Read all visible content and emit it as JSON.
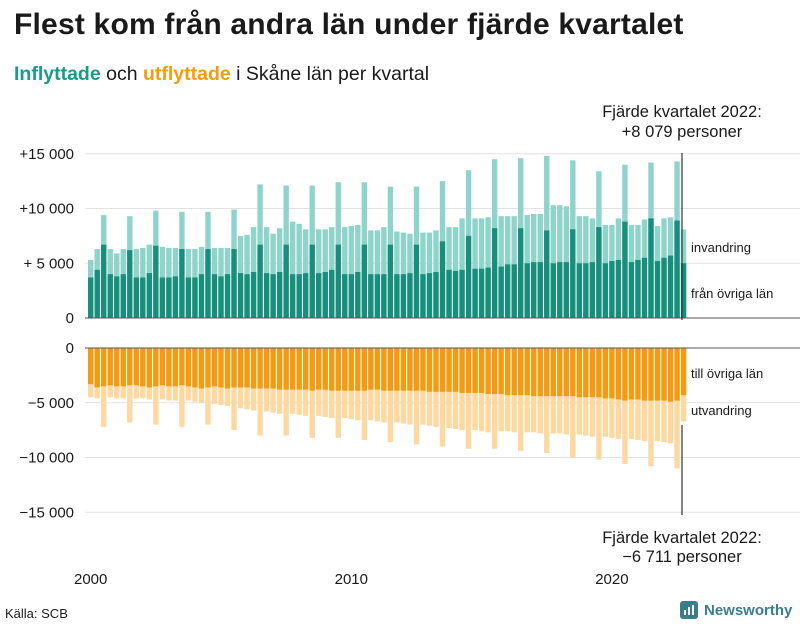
{
  "title": "Flest kom från andra län under fjärde kvartalet",
  "subtitle": {
    "in_word": "Inflyttade",
    "and_word": "och",
    "out_word": "utflyttade",
    "rest": "i Skåne län per kvartal"
  },
  "source": "Källa: SCB",
  "brand": "Newsworthy",
  "colors": {
    "in_total": "#8fd4cb",
    "in_county": "#178f7d",
    "out_total": "#fcd9a0",
    "out_county": "#f39c12",
    "text": "#1a1a1a"
  },
  "chart_data": {
    "type": "bar",
    "title": "Flest kom från andra län under fjärde kvartalet",
    "subtitle": "Inflyttade och utflyttade i Skåne län per kvartal",
    "x": {
      "start": 2000,
      "end": 2022,
      "frequency": "quarterly",
      "tick_labels": [
        "2000",
        "2010",
        "2020"
      ]
    },
    "y": {
      "ylim": [
        -15000,
        15000
      ],
      "tick_values": [
        15000,
        10000,
        5000,
        0,
        -5000,
        -10000,
        -15000
      ],
      "tick_labels": [
        "+15 000",
        "+10 000",
        "+ 5 000",
        "0",
        "−5 000",
        "−10 000",
        "−15 000"
      ]
    },
    "series_labels": {
      "in_total": "invandring",
      "in_county": "från övriga län",
      "out_county": "till övriga län",
      "out_total": "utvandring"
    },
    "annotations": {
      "top_line1": "Fjärde kvartalet 2022:",
      "top_line2": "+8 079 personer",
      "bottom_line1": "Fjärde kvartalet 2022:",
      "bottom_line2": "−6 711 personer"
    },
    "in_total": [
      5300,
      6300,
      9400,
      6300,
      5900,
      6300,
      9300,
      6300,
      6400,
      6700,
      9800,
      6500,
      6400,
      6400,
      9700,
      6300,
      6300,
      6500,
      9700,
      6400,
      6400,
      6400,
      9900,
      7500,
      7600,
      8300,
      12200,
      8300,
      7700,
      8200,
      12100,
      8800,
      8600,
      8100,
      12100,
      8100,
      8100,
      8300,
      12400,
      8300,
      8400,
      8500,
      12400,
      8000,
      8000,
      8300,
      12000,
      7900,
      7800,
      7700,
      12000,
      7800,
      7800,
      8000,
      12500,
      8300,
      8300,
      9100,
      13500,
      9100,
      9100,
      9200,
      14500,
      9300,
      9300,
      9300,
      14600,
      9400,
      9500,
      9500,
      14800,
      10300,
      10300,
      10200,
      14400,
      9300,
      9300,
      9100,
      13400,
      8500,
      8500,
      9100,
      14000,
      8500,
      8500,
      9000,
      14200,
      8400,
      9100,
      9200,
      14300,
      8079
    ],
    "in_county": [
      3700,
      4400,
      6700,
      4000,
      3800,
      4000,
      6200,
      3700,
      3700,
      4100,
      6600,
      3700,
      3700,
      3800,
      6300,
      3700,
      3700,
      4000,
      6300,
      4000,
      3800,
      4000,
      6300,
      4100,
      4000,
      4200,
      6700,
      4100,
      4000,
      4200,
      6700,
      4000,
      4000,
      4100,
      6700,
      4100,
      4200,
      4400,
      6700,
      4000,
      4000,
      4200,
      6700,
      4000,
      4000,
      4000,
      6700,
      4000,
      4000,
      4100,
      6700,
      4000,
      4100,
      4200,
      7000,
      4400,
      4300,
      4400,
      7500,
      4500,
      4500,
      4600,
      8200,
      4700,
      4900,
      4900,
      8200,
      5000,
      5100,
      5100,
      8000,
      5000,
      5100,
      5100,
      8100,
      5000,
      5000,
      5100,
      8300,
      5000,
      5200,
      5300,
      8800,
      5100,
      5300,
      5500,
      9100,
      5200,
      5500,
      5700,
      8900,
      5000
    ],
    "out_county": [
      3300,
      3600,
      3500,
      3400,
      3500,
      3500,
      3400,
      3400,
      3500,
      3600,
      3500,
      3400,
      3500,
      3500,
      3400,
      3500,
      3600,
      3700,
      3600,
      3500,
      3600,
      3700,
      3600,
      3600,
      3600,
      3700,
      3700,
      3700,
      3700,
      3800,
      3800,
      3800,
      3800,
      3800,
      3900,
      3800,
      3800,
      3900,
      3900,
      3900,
      3900,
      3900,
      3900,
      3800,
      3800,
      3900,
      3900,
      3900,
      3900,
      3900,
      3900,
      3900,
      4000,
      4000,
      4000,
      4000,
      4000,
      4100,
      4100,
      4100,
      4100,
      4200,
      4200,
      4200,
      4300,
      4300,
      4300,
      4300,
      4400,
      4400,
      4400,
      4400,
      4400,
      4400,
      4400,
      4500,
      4500,
      4500,
      4500,
      4600,
      4600,
      4700,
      4800,
      4700,
      4700,
      4800,
      4800,
      4800,
      4800,
      4900,
      4800,
      4300
    ],
    "out_total": [
      4500,
      4600,
      7200,
      4500,
      4600,
      4600,
      6800,
      4600,
      4600,
      4700,
      7000,
      4700,
      4800,
      4800,
      7200,
      4800,
      4900,
      5000,
      7000,
      5100,
      5200,
      5300,
      7500,
      5500,
      5600,
      5700,
      8000,
      5800,
      5900,
      6000,
      8000,
      6000,
      6100,
      6200,
      8200,
      6200,
      6300,
      6400,
      8200,
      6400,
      6500,
      6600,
      8400,
      6600,
      6700,
      6800,
      8600,
      6800,
      6900,
      7000,
      8800,
      7000,
      7100,
      7200,
      9000,
      7300,
      7400,
      7500,
      9200,
      7500,
      7600,
      7700,
      9200,
      7600,
      7600,
      7700,
      9400,
      7700,
      7700,
      7800,
      9600,
      7800,
      7800,
      7900,
      10000,
      7900,
      8000,
      8100,
      10200,
      8100,
      8200,
      8300,
      10600,
      8300,
      8400,
      8500,
      10800,
      8500,
      8600,
      8700,
      11000,
      6711
    ]
  }
}
